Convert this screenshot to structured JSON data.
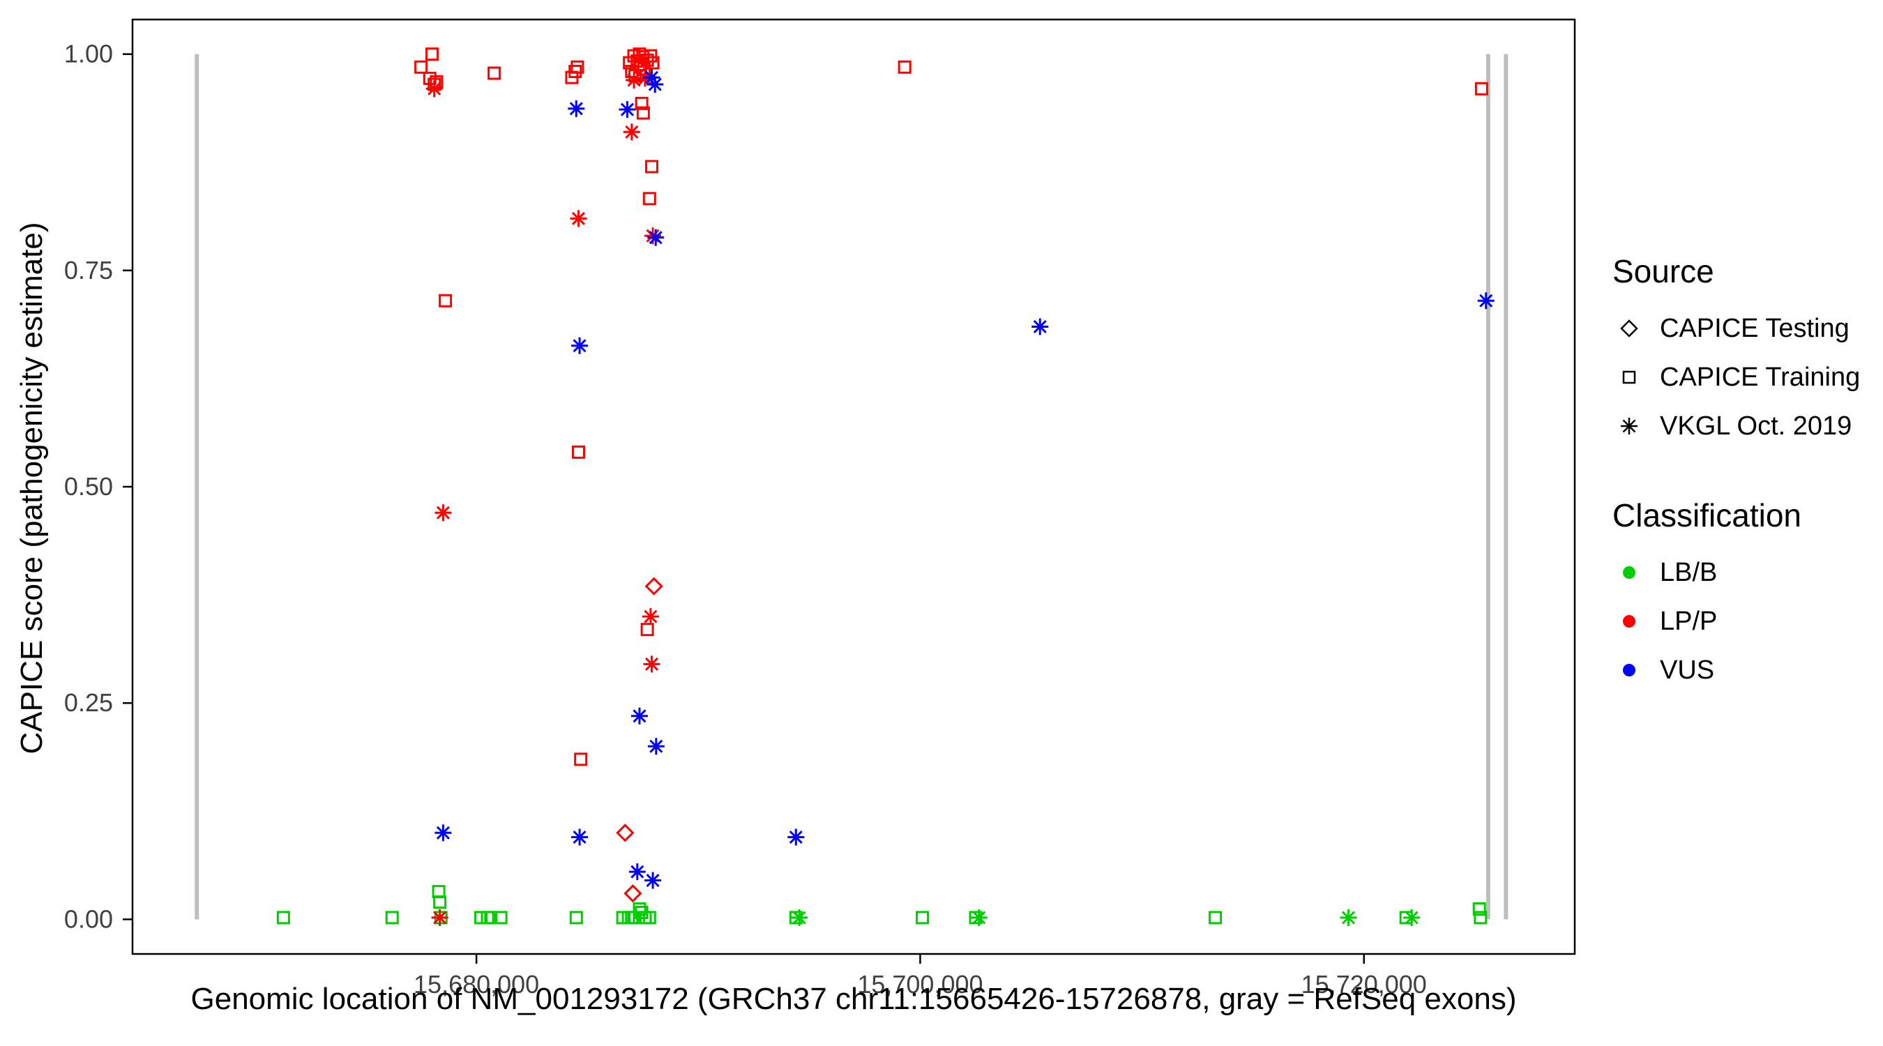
{
  "axes": {
    "x_label": "Genomic location of NM_001293172 (GRCh37 chr11:15665426-15726878, gray = RefSeq exons)",
    "y_label": "CAPICE score (pathogenicity estimate)",
    "x_ticks": [
      {
        "value": 15680000,
        "label": "15,680,000"
      },
      {
        "value": 15700000,
        "label": "15,700,000"
      },
      {
        "value": 15720000,
        "label": "15,720,000"
      }
    ],
    "y_ticks": [
      {
        "value": 0.0,
        "label": "0.00"
      },
      {
        "value": 0.25,
        "label": "0.25"
      },
      {
        "value": 0.5,
        "label": "0.50"
      },
      {
        "value": 0.75,
        "label": "0.75"
      },
      {
        "value": 1.0,
        "label": "1.00"
      }
    ]
  },
  "legend": {
    "source": {
      "title": "Source",
      "items": [
        {
          "shape": "diamond",
          "label": "CAPICE Testing"
        },
        {
          "shape": "square",
          "label": "CAPICE Training"
        },
        {
          "shape": "asterisk",
          "label": "VKGL Oct. 2019"
        }
      ]
    },
    "classification": {
      "title": "Classification",
      "items": [
        {
          "class": "LB/B",
          "label": "LB/B"
        },
        {
          "class": "LP/P",
          "label": "LP/P"
        },
        {
          "class": "VUS",
          "label": "VUS"
        }
      ]
    }
  },
  "chart_data": {
    "type": "scatter",
    "title": "",
    "xlabel": "Genomic location of NM_001293172 (GRCh37 chr11:15665426-15726878, gray = RefSeq exons)",
    "ylabel": "CAPICE score (pathogenicity estimate)",
    "xlim": [
      15664500,
      15729500
    ],
    "ylim": [
      -0.04,
      1.04
    ],
    "grid": false,
    "legend_position": "right",
    "colors": {
      "LB/B": "#00CD00",
      "LP/P": "#FF0000",
      "VUS": "#0000FF",
      "exon": "#BEBEBE",
      "axis": "#000000",
      "tick_label": "#404040",
      "legend_marker": "#000000"
    },
    "shape_by_source": {
      "testing": "diamond",
      "training": "square",
      "vkgl": "asterisk"
    },
    "exons": [
      {
        "x": 15667400,
        "y0": 0.0,
        "y1": 1.0
      },
      {
        "x": 15725600,
        "y0": 0.0,
        "y1": 1.0
      },
      {
        "x": 15726400,
        "y0": 0.0,
        "y1": 1.0
      }
    ],
    "points": [
      [
        15677500,
        0.985,
        "training",
        "LP/P"
      ],
      [
        15678000,
        1.0,
        "training",
        "LP/P"
      ],
      [
        15677900,
        0.972,
        "training",
        "LP/P"
      ],
      [
        15678100,
        0.965,
        "training",
        "LP/P"
      ],
      [
        15678200,
        0.968,
        "training",
        "LP/P"
      ],
      [
        15678100,
        0.96,
        "vkgl",
        "LP/P"
      ],
      [
        15680800,
        0.978,
        "training",
        "LP/P"
      ],
      [
        15684300,
        0.973,
        "training",
        "LP/P"
      ],
      [
        15684450,
        0.98,
        "training",
        "LP/P"
      ],
      [
        15684550,
        0.985,
        "training",
        "LP/P"
      ],
      [
        15684500,
        0.937,
        "vkgl",
        "VUS"
      ],
      [
        15684600,
        0.81,
        "vkgl",
        "LP/P"
      ],
      [
        15684650,
        0.663,
        "vkgl",
        "VUS"
      ],
      [
        15684600,
        0.54,
        "training",
        "LP/P"
      ],
      [
        15684700,
        0.185,
        "training",
        "LP/P"
      ],
      [
        15684650,
        0.095,
        "vkgl",
        "VUS"
      ],
      [
        15678600,
        0.715,
        "training",
        "LP/P"
      ],
      [
        15678500,
        0.47,
        "vkgl",
        "LP/P"
      ],
      [
        15678500,
        0.1,
        "vkgl",
        "VUS"
      ],
      [
        15686900,
        0.99,
        "training",
        "LP/P"
      ],
      [
        15687000,
        0.98,
        "training",
        "LP/P"
      ],
      [
        15687100,
        0.998,
        "training",
        "LP/P"
      ],
      [
        15687150,
        0.975,
        "training",
        "LP/P"
      ],
      [
        15687250,
        0.992,
        "training",
        "LP/P"
      ],
      [
        15687350,
        1.0,
        "training",
        "LP/P"
      ],
      [
        15687400,
        0.988,
        "training",
        "LP/P"
      ],
      [
        15687500,
        0.997,
        "training",
        "LP/P"
      ],
      [
        15687550,
        0.983,
        "training",
        "LP/P"
      ],
      [
        15687700,
        0.993,
        "training",
        "LP/P"
      ],
      [
        15687850,
        0.998,
        "training",
        "LP/P"
      ],
      [
        15687950,
        0.99,
        "training",
        "LP/P"
      ],
      [
        15687300,
        0.985,
        "testing",
        "LP/P"
      ],
      [
        15687100,
        0.97,
        "vkgl",
        "LP/P"
      ],
      [
        15687600,
        0.972,
        "vkgl",
        "LP/P"
      ],
      [
        15686800,
        0.936,
        "vkgl",
        "VUS"
      ],
      [
        15687900,
        0.973,
        "vkgl",
        "VUS"
      ],
      [
        15688050,
        0.965,
        "vkgl",
        "VUS"
      ],
      [
        15687000,
        0.91,
        "vkgl",
        "LP/P"
      ],
      [
        15687450,
        0.943,
        "training",
        "LP/P"
      ],
      [
        15687520,
        0.932,
        "training",
        "LP/P"
      ],
      [
        15687900,
        0.87,
        "training",
        "LP/P"
      ],
      [
        15687800,
        0.833,
        "training",
        "LP/P"
      ],
      [
        15687950,
        0.79,
        "vkgl",
        "LP/P"
      ],
      [
        15688080,
        0.788,
        "vkgl",
        "VUS"
      ],
      [
        15688000,
        0.385,
        "testing",
        "LP/P"
      ],
      [
        15687850,
        0.35,
        "vkgl",
        "LP/P"
      ],
      [
        15687700,
        0.335,
        "training",
        "LP/P"
      ],
      [
        15687900,
        0.295,
        "vkgl",
        "LP/P"
      ],
      [
        15687350,
        0.235,
        "vkgl",
        "VUS"
      ],
      [
        15688100,
        0.2,
        "vkgl",
        "VUS"
      ],
      [
        15687250,
        0.055,
        "vkgl",
        "VUS"
      ],
      [
        15687950,
        0.045,
        "vkgl",
        "VUS"
      ],
      [
        15686700,
        0.1,
        "testing",
        "LP/P"
      ],
      [
        15687050,
        0.03,
        "testing",
        "LP/P"
      ],
      [
        15699300,
        0.985,
        "training",
        "LP/P"
      ],
      [
        15705400,
        0.685,
        "vkgl",
        "VUS"
      ],
      [
        15694400,
        0.095,
        "vkgl",
        "VUS"
      ],
      [
        15725500,
        0.715,
        "vkgl",
        "VUS"
      ],
      [
        15725300,
        0.96,
        "training",
        "LP/P"
      ],
      [
        15671300,
        0.002,
        "training",
        "LB/B"
      ],
      [
        15676200,
        0.002,
        "training",
        "LB/B"
      ],
      [
        15678300,
        0.032,
        "training",
        "LB/B"
      ],
      [
        15678350,
        0.02,
        "training",
        "LB/B"
      ],
      [
        15678400,
        0.002,
        "training",
        "LB/B"
      ],
      [
        15678350,
        0.002,
        "vkgl",
        "LP/P"
      ],
      [
        15680200,
        0.002,
        "training",
        "LB/B"
      ],
      [
        15680500,
        0.002,
        "training",
        "LB/B"
      ],
      [
        15680650,
        0.002,
        "training",
        "LB/B"
      ],
      [
        15681100,
        0.002,
        "training",
        "LB/B"
      ],
      [
        15684500,
        0.002,
        "training",
        "LB/B"
      ],
      [
        15686600,
        0.002,
        "training",
        "LB/B"
      ],
      [
        15686850,
        0.002,
        "training",
        "LB/B"
      ],
      [
        15687000,
        0.002,
        "training",
        "LB/B"
      ],
      [
        15687150,
        0.002,
        "training",
        "LB/B"
      ],
      [
        15687350,
        0.012,
        "training",
        "LB/B"
      ],
      [
        15687450,
        0.008,
        "training",
        "LB/B"
      ],
      [
        15687600,
        0.002,
        "training",
        "LB/B"
      ],
      [
        15687800,
        0.002,
        "training",
        "LB/B"
      ],
      [
        15694400,
        0.002,
        "training",
        "LB/B"
      ],
      [
        15694550,
        0.002,
        "vkgl",
        "LB/B"
      ],
      [
        15700100,
        0.002,
        "training",
        "LB/B"
      ],
      [
        15702500,
        0.002,
        "training",
        "LB/B"
      ],
      [
        15702650,
        0.002,
        "vkgl",
        "LB/B"
      ],
      [
        15713300,
        0.002,
        "training",
        "LB/B"
      ],
      [
        15719300,
        0.002,
        "vkgl",
        "LB/B"
      ],
      [
        15721900,
        0.002,
        "training",
        "LB/B"
      ],
      [
        15722150,
        0.002,
        "vkgl",
        "LB/B"
      ],
      [
        15725200,
        0.012,
        "training",
        "LB/B"
      ],
      [
        15725250,
        0.002,
        "training",
        "LB/B"
      ]
    ]
  }
}
